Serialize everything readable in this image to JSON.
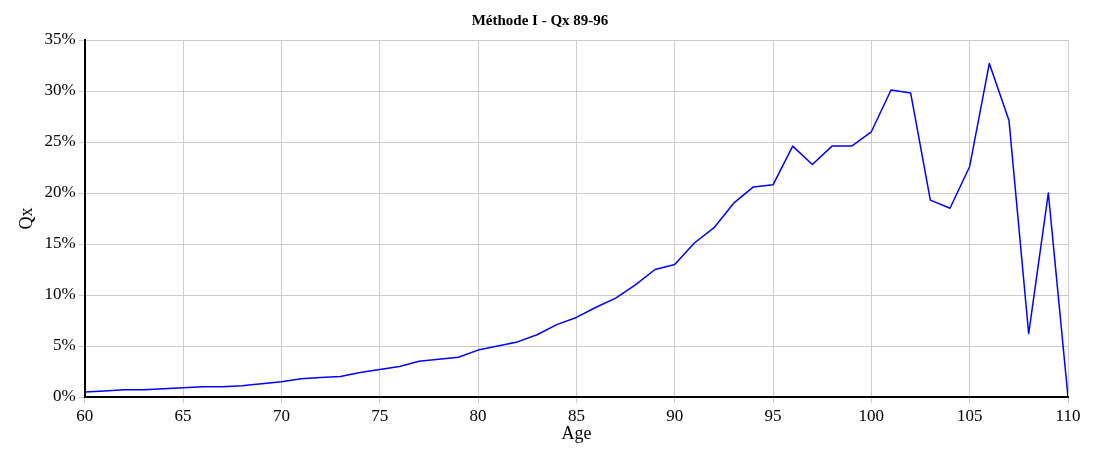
{
  "chart_data": {
    "type": "line",
    "title": "Méthode I - Qx 89-96",
    "xlabel": "Age",
    "ylabel": "Qx",
    "x": [
      60,
      61,
      62,
      63,
      64,
      65,
      66,
      67,
      68,
      69,
      70,
      71,
      72,
      73,
      74,
      75,
      76,
      77,
      78,
      79,
      80,
      81,
      82,
      83,
      84,
      85,
      86,
      87,
      88,
      89,
      90,
      91,
      92,
      93,
      94,
      95,
      96,
      97,
      98,
      99,
      100,
      101,
      102,
      103,
      104,
      105,
      106,
      107,
      108,
      109,
      110
    ],
    "series": [
      {
        "color": "#0000ff",
        "values": [
          0.5,
          0.6,
          0.7,
          0.7,
          0.8,
          0.9,
          1.0,
          1.0,
          1.1,
          1.3,
          1.5,
          1.8,
          1.9,
          2.0,
          2.4,
          2.7,
          3.0,
          3.5,
          3.7,
          3.9,
          4.6,
          5.0,
          5.4,
          6.1,
          7.1,
          7.8,
          8.8,
          9.7,
          11.0,
          12.5,
          13.0,
          15.1,
          16.6,
          19.0,
          20.6,
          20.8,
          24.6,
          22.8,
          24.6,
          24.6,
          26.0,
          30.1,
          29.8,
          19.3,
          18.5,
          22.6,
          32.7,
          27.1,
          6.2,
          20.0,
          0
        ]
      }
    ],
    "xlim": [
      60,
      110
    ],
    "xticks": [
      60,
      65,
      70,
      75,
      80,
      85,
      90,
      95,
      100,
      105,
      110
    ],
    "ylim": [
      0,
      35
    ],
    "yticks": [
      {
        "value": 0,
        "label": "0%"
      },
      {
        "value": 5,
        "label": "5%"
      },
      {
        "value": 10,
        "label": "10%"
      },
      {
        "value": 15,
        "label": "15%"
      },
      {
        "value": 20,
        "label": "20%"
      },
      {
        "value": 25,
        "label": "25%"
      },
      {
        "value": 30,
        "label": "30%"
      },
      {
        "value": 35,
        "label": "35%"
      }
    ],
    "grid": true,
    "legend": false,
    "marker": "none",
    "line_style": "solid"
  }
}
